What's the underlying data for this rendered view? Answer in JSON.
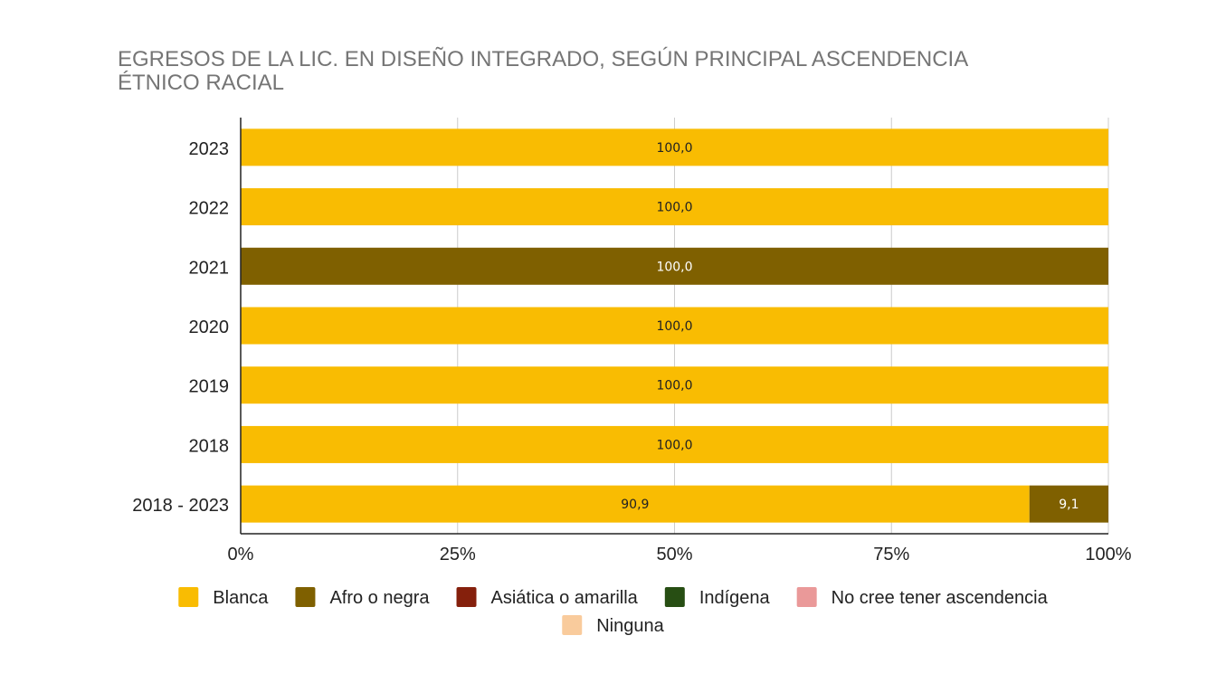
{
  "chart_data": {
    "type": "bar",
    "orientation": "horizontal",
    "stacked": true,
    "title": "EGRESOS DE LA LIC. EN DISEÑO INTEGRADO, SEGÚN PRINCIPAL ASCENDENCIA ÉTNICO RACIAL",
    "title_lines": [
      "EGRESOS DE LA LIC. EN DISEÑO INTEGRADO, SEGÚN PRINCIPAL ASCENDENCIA",
      "ÉTNICO RACIAL"
    ],
    "xlabel": "",
    "ylabel": "",
    "xlim": [
      0,
      100
    ],
    "x_tick_labels": [
      "0%",
      "25%",
      "50%",
      "75%",
      "100%"
    ],
    "x_ticks": [
      0,
      25,
      50,
      75,
      100
    ],
    "grid": true,
    "legend_position": "bottom",
    "categories": [
      "2023",
      "2022",
      "2021",
      "2020",
      "2019",
      "2018",
      "2018 - 2023"
    ],
    "series": [
      {
        "name": "Blanca",
        "color": "#f9bc02",
        "label_color": "#222222",
        "values": [
          100.0,
          100.0,
          0,
          100.0,
          100.0,
          100.0,
          90.9
        ],
        "labels": [
          "100,0",
          "100,0",
          "",
          "100,0",
          "100,0",
          "100,0",
          "90,9"
        ]
      },
      {
        "name": "Afro o negra",
        "color": "#7f6000",
        "label_color": "#ffffff",
        "values": [
          0,
          0,
          100.0,
          0,
          0,
          0,
          9.1
        ],
        "labels": [
          "",
          "",
          "100,0",
          "",
          "",
          "",
          "9,1"
        ]
      },
      {
        "name": "Asiática o amarilla",
        "color": "#85200c",
        "label_color": "#ffffff",
        "values": [
          0,
          0,
          0,
          0,
          0,
          0,
          0
        ],
        "labels": [
          "",
          "",
          "",
          "",
          "",
          "",
          ""
        ]
      },
      {
        "name": "Indígena",
        "color": "#274e13",
        "label_color": "#ffffff",
        "values": [
          0,
          0,
          0,
          0,
          0,
          0,
          0
        ],
        "labels": [
          "",
          "",
          "",
          "",
          "",
          "",
          ""
        ]
      },
      {
        "name": "No cree tener ascendencia",
        "color": "#ea9999",
        "label_color": "#222222",
        "values": [
          0,
          0,
          0,
          0,
          0,
          0,
          0
        ],
        "labels": [
          "",
          "",
          "",
          "",
          "",
          "",
          ""
        ]
      },
      {
        "name": "Ninguna",
        "color": "#f9cb9c",
        "label_color": "#222222",
        "values": [
          0,
          0,
          0,
          0,
          0,
          0,
          0
        ],
        "labels": [
          "",
          "",
          "",
          "",
          "",
          "",
          ""
        ]
      }
    ]
  }
}
